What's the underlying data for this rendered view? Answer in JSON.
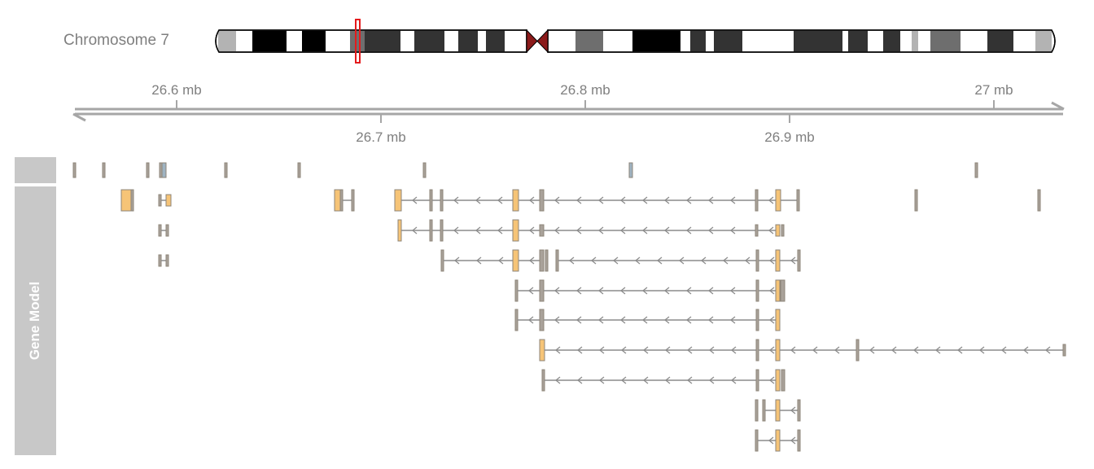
{
  "ideogram": {
    "label": "Chromosome 7",
    "highlight_color": "#e41a1c"
  },
  "axis": {
    "tick_labels_above": [
      "26.6 mb",
      "26.8 mb",
      "27 mb"
    ],
    "tick_labels_below": [
      "26.7 mb",
      "26.9 mb"
    ]
  },
  "track": {
    "title": "Gene Model",
    "panel_color": "#c8c8c8",
    "exon_utr_color": "#a9a29a",
    "exon_cds_color": "#f6c477",
    "annotation_color": "#9fb3c2",
    "intron_color": "#8c8c8c"
  }
}
